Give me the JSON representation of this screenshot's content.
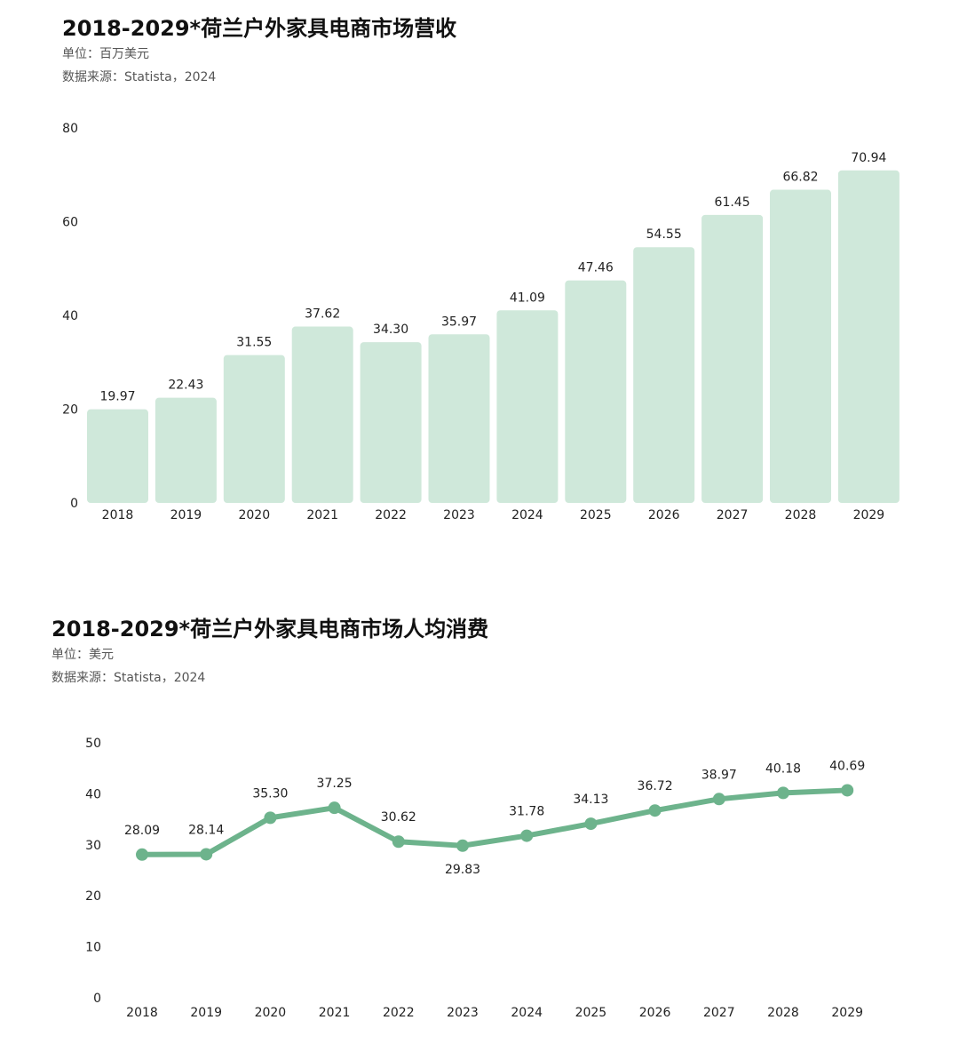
{
  "chart_data": [
    {
      "type": "bar",
      "title": "2018-2029*荷兰户外家具电商市场营收",
      "unit_label": "单位：百万美元",
      "source_label": "数据来源：Statista，2024",
      "categories": [
        "2018",
        "2019",
        "2020",
        "2021",
        "2022",
        "2023",
        "2024",
        "2025",
        "2026",
        "2027",
        "2028",
        "2029"
      ],
      "values": [
        19.97,
        22.43,
        31.55,
        37.62,
        34.3,
        35.97,
        41.09,
        47.46,
        54.55,
        61.45,
        66.82,
        70.94
      ],
      "value_labels": [
        "19.97",
        "22.43",
        "31.55",
        "37.62",
        "34.30",
        "35.97",
        "41.09",
        "47.46",
        "54.55",
        "61.45",
        "66.82",
        "70.94"
      ],
      "yticks": [
        "0",
        "20",
        "40",
        "60",
        "80"
      ],
      "ylim": [
        0,
        80
      ],
      "bar_color": "#cfe8da",
      "grid": false,
      "xlabel": "",
      "ylabel": ""
    },
    {
      "type": "line",
      "title": "2018-2029*荷兰户外家具电商市场人均消费",
      "unit_label": "单位：美元",
      "source_label": "数据来源：Statista，2024",
      "categories": [
        "2018",
        "2019",
        "2020",
        "2021",
        "2022",
        "2023",
        "2024",
        "2025",
        "2026",
        "2027",
        "2028",
        "2029"
      ],
      "values": [
        28.09,
        28.14,
        35.3,
        37.25,
        30.62,
        29.83,
        31.78,
        34.13,
        36.72,
        38.97,
        40.18,
        40.69
      ],
      "value_labels": [
        "28.09",
        "28.14",
        "35.30",
        "37.25",
        "30.62",
        "29.83",
        "31.78",
        "34.13",
        "36.72",
        "38.97",
        "40.18",
        "40.69"
      ],
      "yticks": [
        "0",
        "10",
        "20",
        "30",
        "40",
        "50"
      ],
      "ylim": [
        0,
        50
      ],
      "line_color": "#6db38c",
      "grid": false,
      "xlabel": "",
      "ylabel": ""
    }
  ]
}
